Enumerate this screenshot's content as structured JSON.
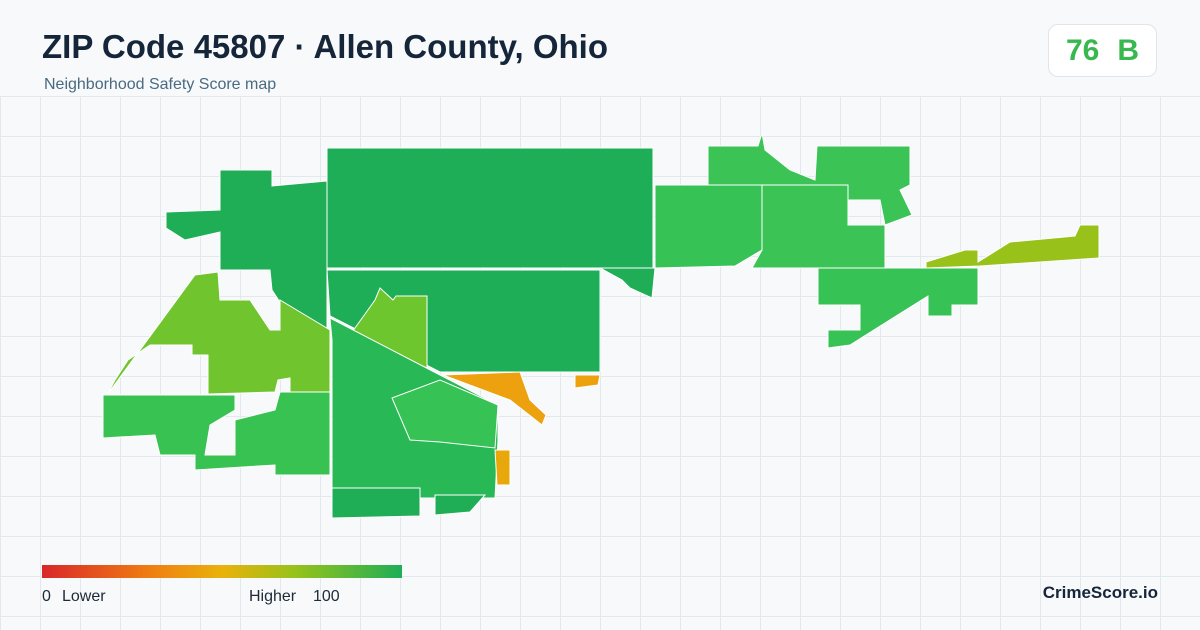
{
  "header": {
    "title": "ZIP Code 45807 · Allen County, Ohio",
    "subtitle": "Neighborhood Safety Score map"
  },
  "score": {
    "value": "76",
    "grade": "B"
  },
  "legend": {
    "min": "0",
    "min_label": "Lower",
    "max_label": "Higher",
    "max": "100"
  },
  "footer": {
    "brand": "CrimeScore.io"
  }
}
